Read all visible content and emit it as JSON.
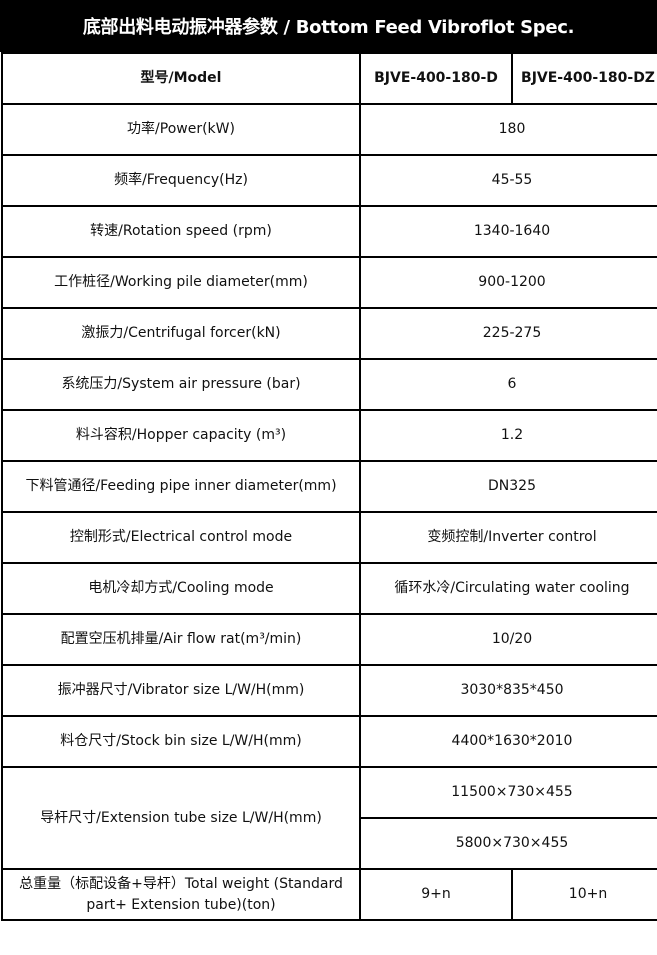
{
  "title": "底部出料电动振冲器参数 / Bottom Feed Vibroflot  Spec.",
  "header": {
    "label": "型号/Model",
    "model_d": "BJVE-400-180-D",
    "model_dz": "BJVE-400-180-DZ"
  },
  "rows": [
    {
      "label": "功率/Power(kW)",
      "value": "180"
    },
    {
      "label": "频率/Frequency(Hz)",
      "value": "45-55"
    },
    {
      "label": "转速/Rotation speed (rpm)",
      "value": "1340-1640"
    },
    {
      "label": "工作桩径/Working pile diameter(mm)",
      "value": "900-1200"
    },
    {
      "label": "激振力/Centrifugal forcer(kN)",
      "value": "225-275"
    },
    {
      "label": "系统压力/System air pressure (bar)",
      "value": "6"
    },
    {
      "label": "料斗容积/Hopper capacity (m³)",
      "value": "1.2"
    },
    {
      "label": "下料管通径/Feeding pipe inner diameter(mm)",
      "value": "DN325"
    },
    {
      "label": "控制形式/Electrical control mode",
      "value": "变频控制/Inverter control"
    },
    {
      "label": "电机冷却方式/Cooling mode",
      "value": "循环水冷/Circulating water cooling"
    },
    {
      "label": "配置空压机排量/Air flow rat(m³/min)",
      "value": "10/20"
    },
    {
      "label": "振冲器尺寸/Vibrator size  L/W/H(mm)",
      "value": "3030*835*450"
    },
    {
      "label": "料仓尺寸/Stock bin size L/W/H(mm)",
      "value": "4400*1630*2010"
    }
  ],
  "extension": {
    "label": "导杆尺寸/Extension tube size L/W/H(mm)",
    "values": [
      "11500×730×455",
      "5800×730×455"
    ]
  },
  "total": {
    "label": "总重量（标配设备+导杆）Total weight (Standard part+ Extension tube)(ton)",
    "model_d": "9+n",
    "model_dz": "10+n"
  }
}
